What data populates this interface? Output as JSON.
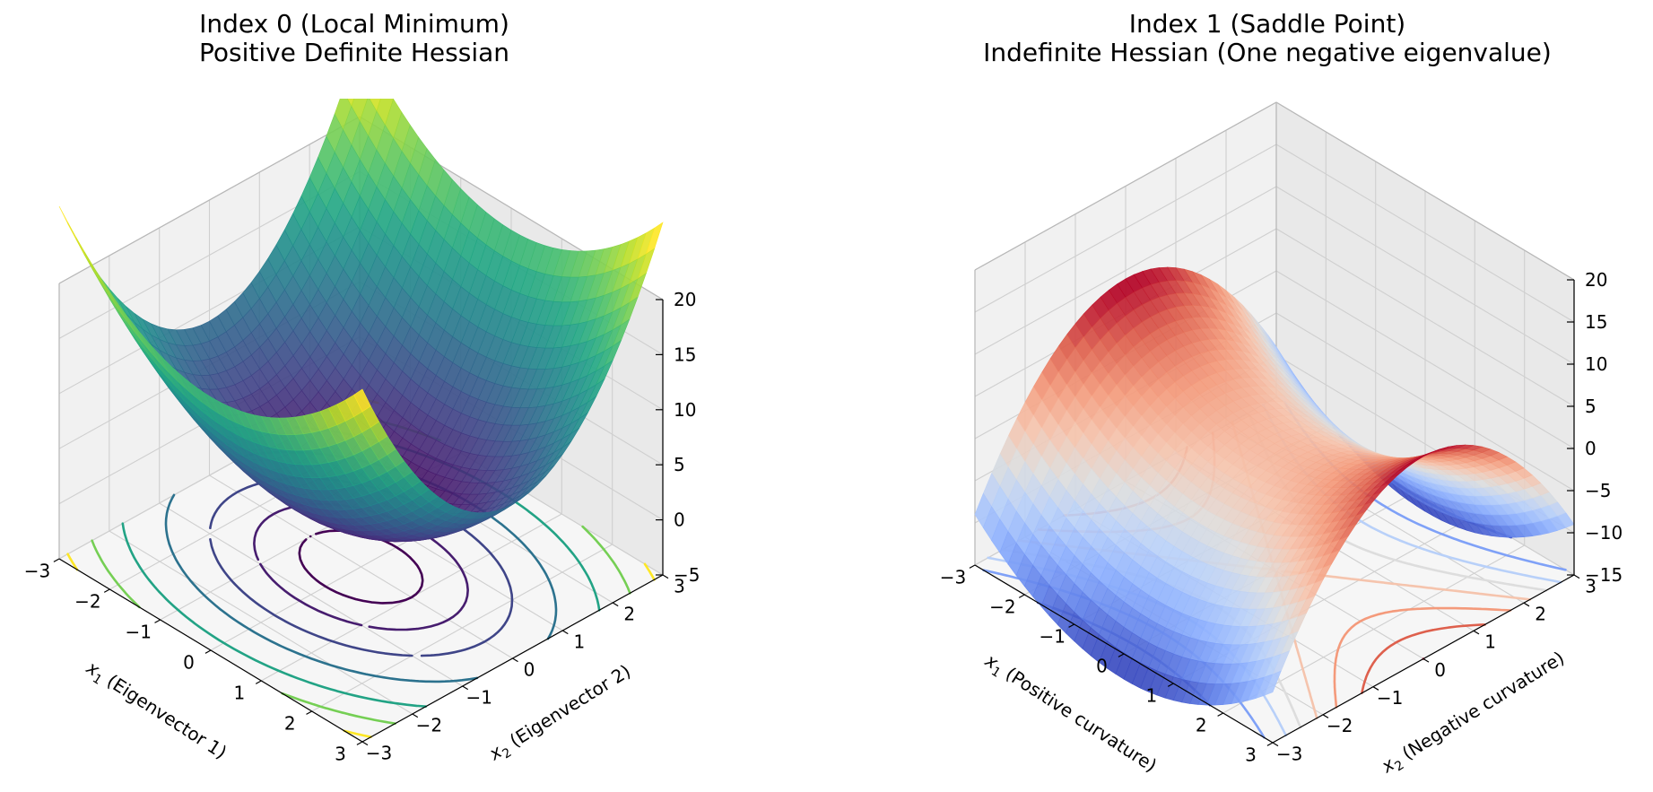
{
  "chart_data": [
    {
      "type": "surface3d",
      "title_line1": "Index 0 (Local Minimum)",
      "title_line2": "Positive Definite Hessian",
      "xlabel_sym": "x",
      "xlabel_sub": "1",
      "xlabel_rest": " (Eigenvector 1)",
      "ylabel_sym": "x",
      "ylabel_sub": "2",
      "ylabel_rest": " (Eigenvector 2)",
      "function": "f(x1,x2) = x1^2 + 2*x2^2",
      "colormap": "viridis",
      "xlim": [
        -3,
        3
      ],
      "ylim": [
        -3,
        3
      ],
      "zlim": [
        -5,
        20
      ],
      "x_ticks": [
        "−3",
        "−2",
        "−1",
        "0",
        "1",
        "2",
        "3"
      ],
      "y_ticks": [
        "−3",
        "−2",
        "−1",
        "0",
        "1",
        "2",
        "3"
      ],
      "z_ticks": [
        "−5",
        "0",
        "5",
        "10",
        "15",
        "20"
      ],
      "contour_levels": [
        1,
        3,
        6,
        10,
        15,
        20,
        25
      ],
      "contour_offset": -5,
      "grid": true
    },
    {
      "type": "surface3d",
      "title_line1": "Index 1 (Saddle Point)",
      "title_line2": "Indefinite Hessian (One negative eigenvalue)",
      "xlabel_sym": "x",
      "xlabel_sub": "1",
      "xlabel_rest": " (Positive curvature)",
      "ylabel_sym": "x",
      "ylabel_sub": "2",
      "ylabel_rest": " (Negative curvature)",
      "function": "f(x1,x2) = x1^2 - 2*x2^2",
      "colormap": "coolwarm",
      "xlim": [
        -3,
        3
      ],
      "ylim": [
        -3,
        3
      ],
      "zlim": [
        -15,
        20
      ],
      "x_ticks": [
        "−3",
        "−2",
        "−1",
        "0",
        "1",
        "2",
        "3"
      ],
      "y_ticks": [
        "−3",
        "−2",
        "−1",
        "0",
        "1",
        "2",
        "3"
      ],
      "z_ticks": [
        "−15",
        "−10",
        "−5",
        "0",
        "5",
        "10",
        "15",
        "20"
      ],
      "contour_levels": [
        -15,
        -10,
        -6,
        -3,
        0,
        3,
        6,
        9
      ],
      "contour_offset": -15,
      "grid": true
    }
  ]
}
